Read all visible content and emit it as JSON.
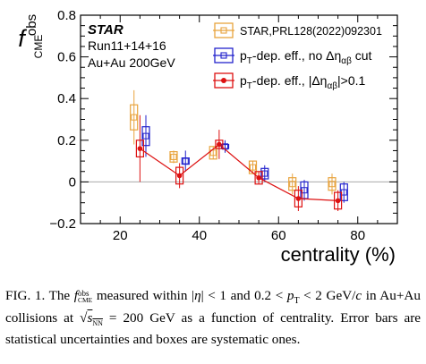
{
  "chart_data": {
    "type": "scatter",
    "title": "",
    "xlabel": "centrality (%)",
    "ylabel_main": "f",
    "ylabel_sup": "obs",
    "ylabel_sub": "CME",
    "xlim": [
      10,
      90
    ],
    "ylim": [
      -0.2,
      0.8
    ],
    "xticks": [
      20,
      40,
      60,
      80
    ],
    "yticks": [
      -0.2,
      0,
      0.2,
      0.4,
      0.6,
      0.8
    ],
    "ytick_labels": [
      "−0.2",
      "0",
      "0.2",
      "0.4",
      "0.6",
      "0.8"
    ],
    "zero_line": true,
    "grid": false,
    "legend_position": "top-right",
    "annotations": {
      "experiment": "STAR",
      "runs": "Run11+14+16",
      "system": "Au+Au 200GeV"
    },
    "series": [
      {
        "name": "STAR,PRL128(2022)092301",
        "color": "#e8a33d",
        "marker": "open-square",
        "connected": false,
        "x": [
          23.5,
          33.5,
          43.5,
          53.5,
          63.5,
          73.5
        ],
        "y": [
          0.31,
          0.12,
          0.14,
          0.07,
          -0.01,
          -0.01
        ],
        "stat_err": [
          0.13,
          0.03,
          0.03,
          0.03,
          0.05,
          0.05
        ],
        "sys_err": [
          0.06,
          0.025,
          0.03,
          0.03,
          0.03,
          0.03
        ]
      },
      {
        "name": "p_T-dep. eff., no Δη_αβ cut",
        "color": "#2222cc",
        "marker": "open-square",
        "connected": false,
        "x": [
          26.5,
          36.5,
          46.5,
          56.5,
          66.5,
          76.5
        ],
        "y": [
          0.22,
          0.1,
          0.17,
          0.04,
          -0.04,
          -0.05
        ],
        "stat_err": [
          0.1,
          0.05,
          0.03,
          0.04,
          0.05,
          0.05
        ],
        "sys_err": [
          0.045,
          0.015,
          0.01,
          0.025,
          0.04,
          0.04
        ]
      },
      {
        "name": "p_T-dep. eff., |Δη_αβ|>0.1",
        "color": "#dd1111",
        "marker": "filled-circle",
        "connected": true,
        "x": [
          25,
          35,
          45,
          55,
          65,
          75
        ],
        "y": [
          0.16,
          0.03,
          0.18,
          0.02,
          -0.08,
          -0.09
        ],
        "stat_err": [
          0.16,
          0.06,
          0.07,
          0.03,
          0.06,
          0.05
        ],
        "sys_err": [
          0.04,
          0.04,
          0.02,
          0.03,
          0.04,
          0.04
        ]
      }
    ],
    "legend_entries": [
      {
        "pre": "STAR,PRL128(2022)092301",
        "post": ""
      },
      {
        "pre": "p",
        "sub1": "T",
        "mid": "-dep. eff., no Δη",
        "sub2": "αβ",
        "post": " cut"
      },
      {
        "pre": "p",
        "sub1": "T",
        "mid": "-dep. eff., |Δη",
        "sub2": "αβ",
        "post": "|>0.1"
      }
    ]
  },
  "caption": {
    "fig_label": "FIG. 1.",
    "t1": " The ",
    "f_main": "f",
    "f_sup": "obs",
    "f_sub": "CME",
    "t2": " measured within |",
    "eta": "η",
    "t3": "| < 1 and 0.2 < ",
    "pt_main": "p",
    "pt_sub": "T",
    "t4": " < 2 GeV/",
    "c": "c",
    "t5": " in Au+Au collisions at ",
    "sqrt": "√",
    "s_main": "s",
    "s_sub": "NN",
    "t6": " = 200 GeV as a function of centrality. Error bars are statistical uncertainties and boxes are systematic ones."
  }
}
